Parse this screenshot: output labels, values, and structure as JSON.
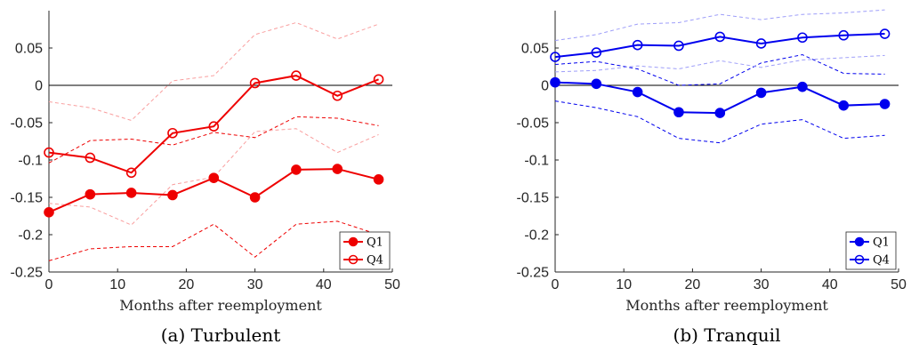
{
  "chart_data": [
    {
      "type": "line",
      "caption": "(a) Turbulent",
      "xlabel": "Months after reemployment",
      "ylabel": "",
      "xlim": [
        0,
        50
      ],
      "ylim": [
        -0.25,
        0.1
      ],
      "xticks": [
        0,
        10,
        20,
        30,
        40,
        50
      ],
      "yticks": [
        -0.25,
        -0.2,
        -0.15,
        -0.1,
        -0.05,
        0,
        0.05
      ],
      "ytick_labels": [
        "-0.25",
        "-0.2",
        "-0.15",
        "-0.1",
        "-0.05",
        "0",
        "0.05"
      ],
      "zero_line": true,
      "legend_position": "bottom-right",
      "x": [
        0,
        6,
        12,
        18,
        24,
        30,
        36,
        42,
        48
      ],
      "series": [
        {
          "name": "Q1",
          "marker": "filled-circle",
          "color": "#ee0000",
          "values": [
            -0.17,
            -0.146,
            -0.144,
            -0.147,
            -0.124,
            -0.15,
            -0.113,
            -0.112,
            -0.126
          ],
          "ci_lower": [
            -0.235,
            -0.219,
            -0.216,
            -0.216,
            -0.186,
            -0.23,
            -0.186,
            -0.182,
            -0.2
          ],
          "ci_upper": [
            -0.104,
            -0.074,
            -0.072,
            -0.08,
            -0.063,
            -0.07,
            -0.042,
            -0.044,
            -0.054
          ]
        },
        {
          "name": "Q4",
          "marker": "open-circle",
          "color": "#ee0000",
          "values": [
            -0.09,
            -0.097,
            -0.117,
            -0.064,
            -0.055,
            0.003,
            0.013,
            -0.014,
            0.008
          ],
          "ci_lower": [
            -0.158,
            -0.163,
            -0.187,
            -0.133,
            -0.123,
            -0.062,
            -0.058,
            -0.09,
            -0.066
          ],
          "ci_upper": [
            -0.022,
            -0.03,
            -0.047,
            0.006,
            0.013,
            0.068,
            0.084,
            0.062,
            0.082
          ]
        }
      ]
    },
    {
      "type": "line",
      "caption": "(b) Tranquil",
      "xlabel": "Months after reemployment",
      "ylabel": "",
      "xlim": [
        0,
        50
      ],
      "ylim": [
        -0.25,
        0.1
      ],
      "xticks": [
        0,
        10,
        20,
        30,
        40,
        50
      ],
      "yticks": [
        -0.25,
        -0.2,
        -0.15,
        -0.1,
        -0.05,
        0,
        0.05
      ],
      "ytick_labels": [
        "-0.25",
        "-0.2",
        "-0.15",
        "-0.1",
        "-0.05",
        "0",
        "0.05"
      ],
      "zero_line": true,
      "legend_position": "bottom-right",
      "x": [
        0,
        6,
        12,
        18,
        24,
        30,
        36,
        42,
        48
      ],
      "series": [
        {
          "name": "Q1",
          "marker": "filled-circle",
          "color": "#0000ee",
          "values": [
            0.004,
            0.002,
            -0.009,
            -0.036,
            -0.037,
            -0.01,
            -0.002,
            -0.027,
            -0.025
          ],
          "ci_lower": [
            -0.021,
            -0.03,
            -0.042,
            -0.071,
            -0.077,
            -0.052,
            -0.046,
            -0.071,
            -0.067
          ],
          "ci_upper": [
            0.028,
            0.032,
            0.022,
            0.0,
            0.002,
            0.03,
            0.041,
            0.016,
            0.015
          ]
        },
        {
          "name": "Q4",
          "marker": "open-circle",
          "color": "#0000ee",
          "values": [
            0.038,
            0.044,
            0.054,
            0.053,
            0.065,
            0.056,
            0.064,
            0.067,
            0.069
          ],
          "ci_lower": [
            0.018,
            0.02,
            0.026,
            0.022,
            0.033,
            0.024,
            0.034,
            0.037,
            0.04
          ],
          "ci_upper": [
            0.06,
            0.068,
            0.082,
            0.084,
            0.095,
            0.088,
            0.095,
            0.097,
            0.101
          ]
        }
      ]
    }
  ]
}
